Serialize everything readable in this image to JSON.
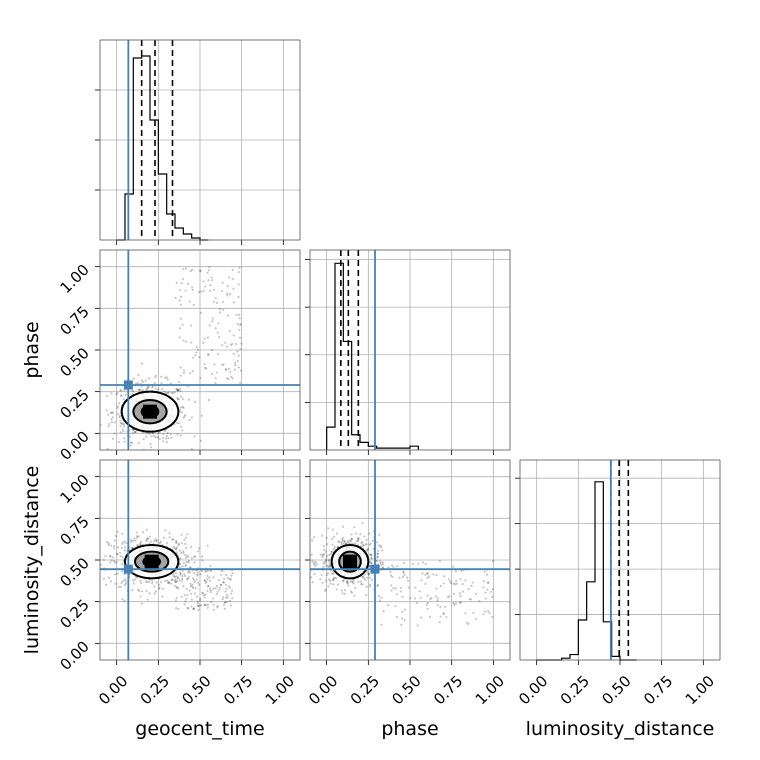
{
  "chart_data": {
    "type": "corner",
    "parameters": [
      "geocent_time",
      "phase",
      "luminosity_distance"
    ],
    "axis_range": [
      -0.1,
      1.1
    ],
    "ticks": [
      0.0,
      0.25,
      0.5,
      0.75,
      1.0
    ],
    "tick_labels": [
      "0.00",
      "0.25",
      "0.50",
      "0.75",
      "1.00"
    ],
    "grid": true,
    "truth_color": "#4682b4",
    "truths": {
      "geocent_time": 0.07,
      "phase": 0.29,
      "luminosity_distance": 0.445
    },
    "quantiles": {
      "geocent_time": [
        0.15,
        0.23,
        0.335
      ],
      "phase": [
        0.085,
        0.13,
        0.19
      ],
      "luminosity_distance": [
        0.445,
        0.495,
        0.55
      ]
    },
    "histograms": {
      "geocent_time": {
        "bin_width": 0.05,
        "bins_start": 0.0,
        "counts": [
          0.0,
          0.23,
          0.91,
          0.92,
          0.6,
          0.33,
          0.13,
          0.06,
          0.03,
          0.01,
          0.0
        ],
        "ymax": 1.0
      },
      "phase": {
        "bin_width": 0.05,
        "bins_start": 0.0,
        "counts": [
          0.12,
          0.98,
          0.57,
          0.08,
          0.04,
          0.02,
          0.01,
          0.01,
          0.01,
          0.01,
          0.02
        ],
        "ymax": 1.05
      },
      "luminosity_distance": {
        "bin_width": 0.05,
        "bins_start": 0.0,
        "counts": [
          0.0,
          0.0,
          0.0,
          0.01,
          0.03,
          0.22,
          0.43,
          0.98,
          0.21,
          0.02,
          0.0,
          0.0
        ],
        "ymax": 1.1
      }
    },
    "pairs": [
      {
        "x": "geocent_time",
        "y": "phase",
        "center": [
          0.2,
          0.13
        ],
        "spread": [
          0.07,
          0.055
        ],
        "tail": {
          "x_range": [
            0.35,
            0.75
          ],
          "y_range": [
            0.3,
            1.0
          ]
        },
        "contour_levels": [
          [
            0.05,
            0.035
          ],
          [
            0.1,
            0.07
          ],
          [
            0.17,
            0.12
          ]
        ]
      },
      {
        "x": "geocent_time",
        "y": "luminosity_distance",
        "center": [
          0.21,
          0.49
        ],
        "spread": [
          0.08,
          0.05
        ],
        "tail": {
          "x_range": [
            0.35,
            0.7
          ],
          "y_range": [
            0.2,
            0.45
          ]
        },
        "contour_levels": [
          [
            0.05,
            0.03
          ],
          [
            0.1,
            0.06
          ],
          [
            0.16,
            0.1
          ]
        ]
      },
      {
        "x": "phase",
        "y": "luminosity_distance",
        "center": [
          0.14,
          0.49
        ],
        "spread": [
          0.055,
          0.05
        ],
        "tail": {
          "x_range": [
            0.3,
            1.0
          ],
          "y_range": [
            0.1,
            0.5
          ]
        },
        "contour_levels": [
          [
            0.035,
            0.03
          ],
          [
            0.065,
            0.06
          ],
          [
            0.11,
            0.1
          ]
        ]
      }
    ]
  }
}
